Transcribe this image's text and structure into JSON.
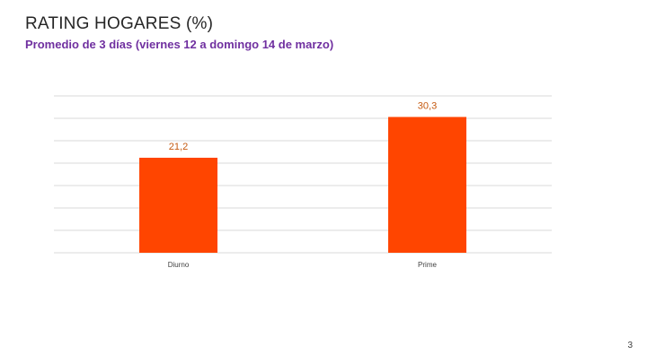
{
  "slide": {
    "title": "RATING HOGARES (%)",
    "subtitle": "Promedio de 3 días (viernes 12 a domingo 14 de marzo)",
    "page_number": "3"
  },
  "colors": {
    "title": "#262626",
    "subtitle": "#7030A0",
    "bar": "#FF4500",
    "data_label": "#C55A11",
    "grid": "#D9D9D9",
    "tick_label": "#404040"
  },
  "chart_data": {
    "type": "bar",
    "categories": [
      "Diurno",
      "Prime"
    ],
    "values": [
      21.2,
      30.3
    ],
    "value_labels": [
      "21,2",
      "30,3"
    ],
    "title": "",
    "xlabel": "",
    "ylabel": "",
    "ylim": [
      0,
      35
    ],
    "grid": true,
    "legend": "none"
  }
}
